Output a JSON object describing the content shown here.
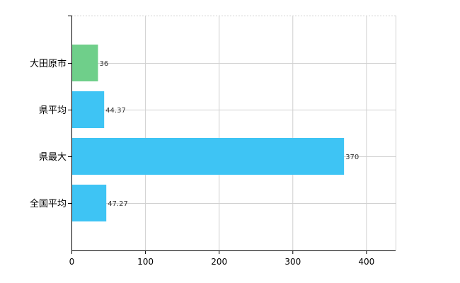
{
  "chart_data": {
    "type": "bar",
    "orientation": "horizontal",
    "categories": [
      "大田原市",
      "県平均",
      "県最大",
      "全国平均"
    ],
    "values": [
      36,
      44.37,
      370,
      47.27
    ],
    "value_labels": [
      "36",
      "44.37",
      "370",
      "47.27"
    ],
    "bar_colors": [
      "#6fcf8a",
      "#3ec4f4",
      "#3ec4f4",
      "#3ec4f4"
    ],
    "xlim": [
      0,
      440
    ],
    "x_ticks": [
      0,
      100,
      200,
      300,
      400
    ],
    "x_tick_labels": [
      "0",
      "100",
      "200",
      "300",
      "400"
    ],
    "title": "",
    "xlabel": "",
    "ylabel": "",
    "grid": true,
    "legend": "none"
  }
}
